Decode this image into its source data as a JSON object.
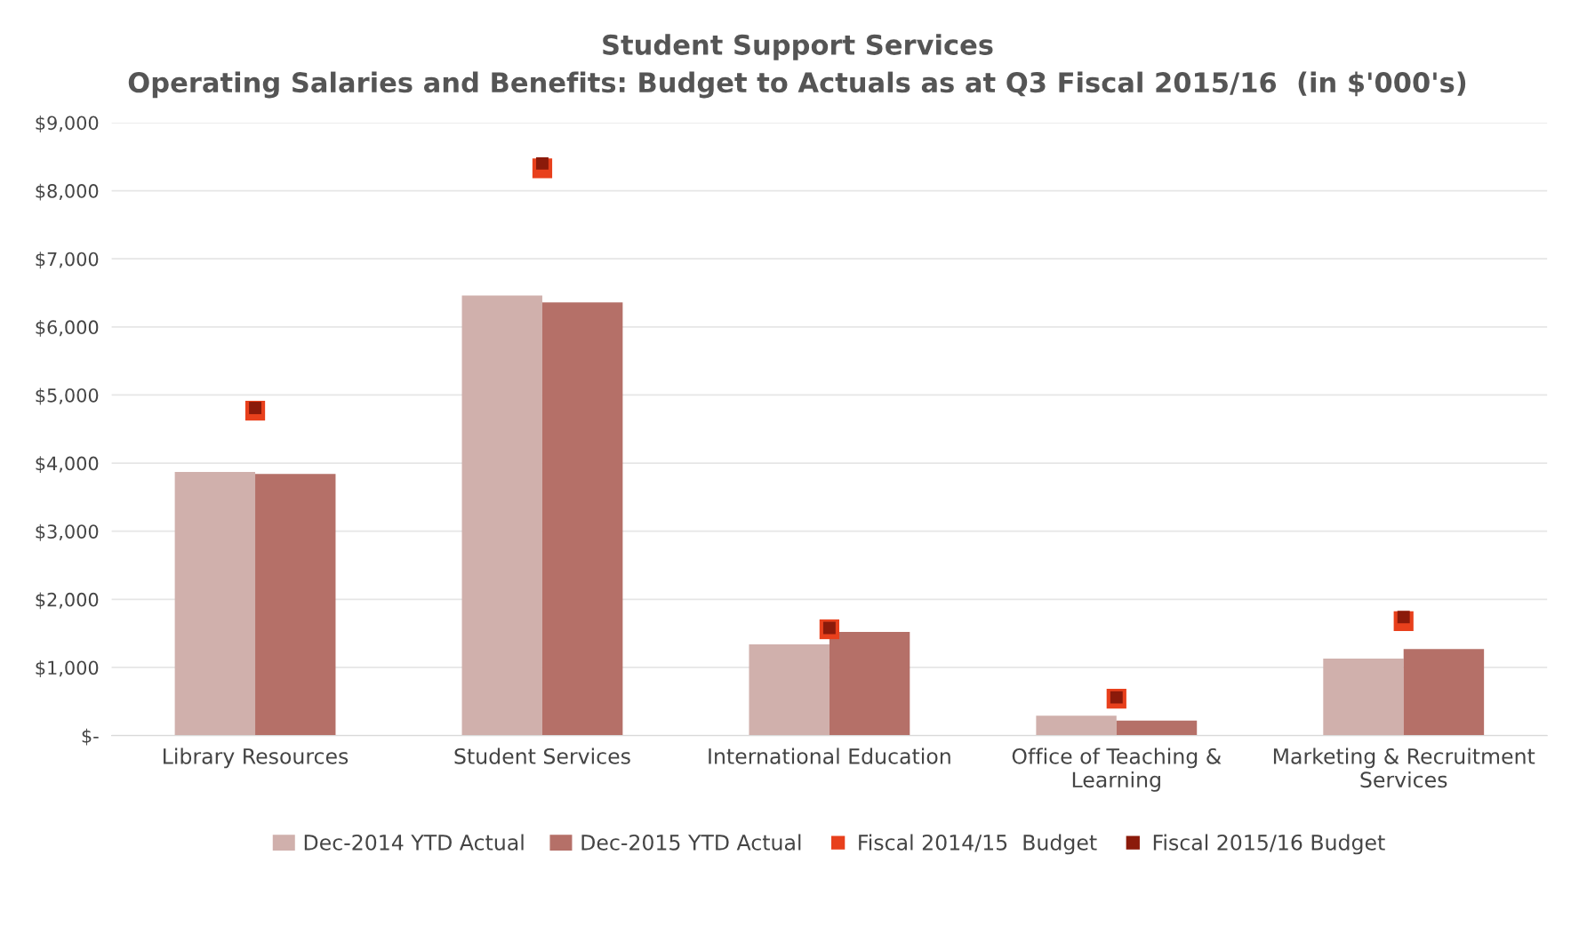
{
  "chart_data": {
    "type": "bar",
    "title": "Student Support Services",
    "subtitle": "Operating Salaries and Benefits: Budget to Actuals as at Q3 Fiscal 2015/16  (in $'000's)",
    "categories": [
      "Library Resources",
      "Student Services",
      "International Education",
      "Office of Teaching &\nLearning",
      "Marketing & Recruitment\nServices"
    ],
    "series": [
      {
        "name": "Dec-2014 YTD Actual",
        "color": "#d0b0ac",
        "values": [
          3870,
          6460,
          1340,
          290,
          1130
        ]
      },
      {
        "name": "Dec-2015 YTD Actual",
        "color": "#b57068",
        "values": [
          3840,
          6360,
          1520,
          220,
          1270
        ]
      },
      {
        "name": "Fiscal 2014/15  Budget",
        "color": "#e8401c",
        "type": "scatter",
        "marker": "square",
        "values": [
          4770,
          8330,
          1560,
          540,
          1680
        ]
      },
      {
        "name": "Fiscal 2015/16 Budget",
        "color": "#8b1a0a",
        "type": "scatter",
        "marker": "square",
        "values": [
          4810,
          8400,
          1580,
          560,
          1740
        ]
      }
    ],
    "ylim": [
      0,
      9000
    ],
    "yticks": [
      {
        "value": 0,
        "label": "$-"
      },
      {
        "value": 1000,
        "label": "$1,000"
      },
      {
        "value": 2000,
        "label": "$2,000"
      },
      {
        "value": 3000,
        "label": "$3,000"
      },
      {
        "value": 4000,
        "label": "$4,000"
      },
      {
        "value": 5000,
        "label": "$5,000"
      },
      {
        "value": 6000,
        "label": "$6,000"
      },
      {
        "value": 7000,
        "label": "$7,000"
      },
      {
        "value": 8000,
        "label": "$8,000"
      },
      {
        "value": 9000,
        "label": "$9,000"
      }
    ],
    "grid": "y",
    "legend": "bottom"
  }
}
